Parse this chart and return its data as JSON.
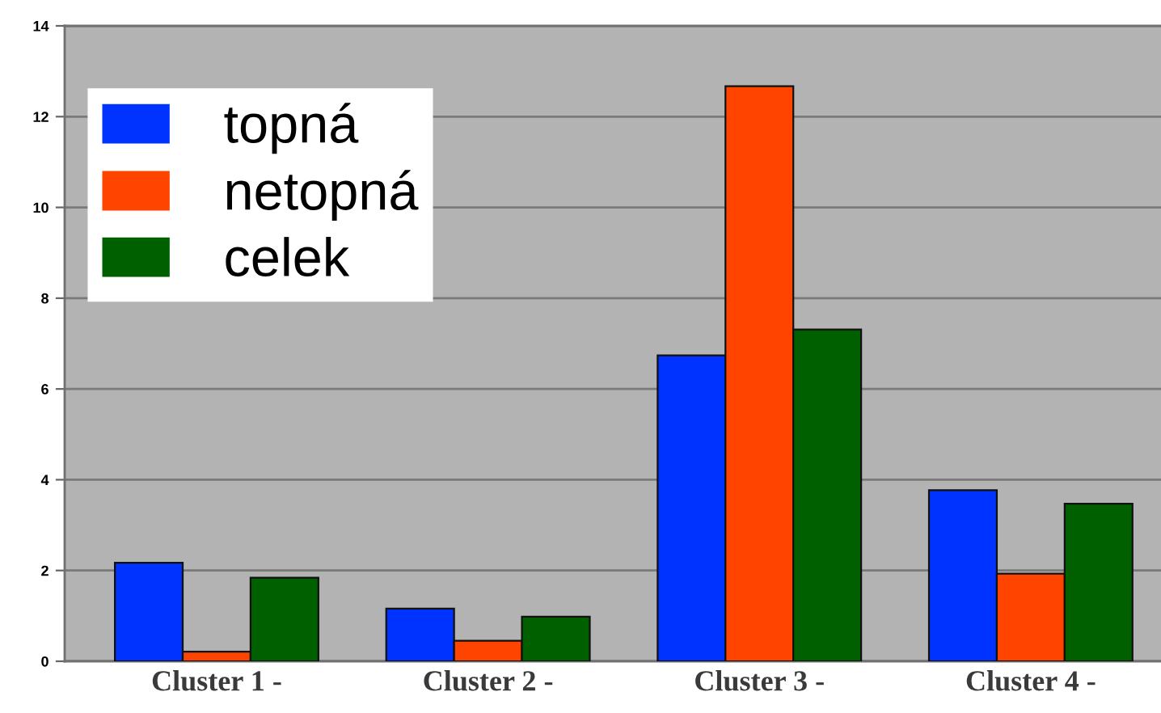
{
  "chart_data": {
    "type": "bar",
    "categories": [
      "Cluster 1 -",
      "Cluster 2 -",
      "Cluster 3 -",
      "Cluster 4 -"
    ],
    "series": [
      {
        "name": "topná",
        "color": "#0033ff",
        "values": [
          2.17,
          1.16,
          6.74,
          3.77
        ]
      },
      {
        "name": "netopná",
        "color": "#ff4400",
        "values": [
          0.21,
          0.45,
          12.67,
          1.93
        ]
      },
      {
        "name": "celek",
        "color": "#006000",
        "values": [
          1.84,
          0.98,
          7.31,
          3.47
        ]
      }
    ],
    "ylim": [
      0,
      14
    ],
    "yticks": [
      0,
      2,
      4,
      6,
      8,
      10,
      12,
      14
    ],
    "grid": "y",
    "legend": "top left"
  }
}
